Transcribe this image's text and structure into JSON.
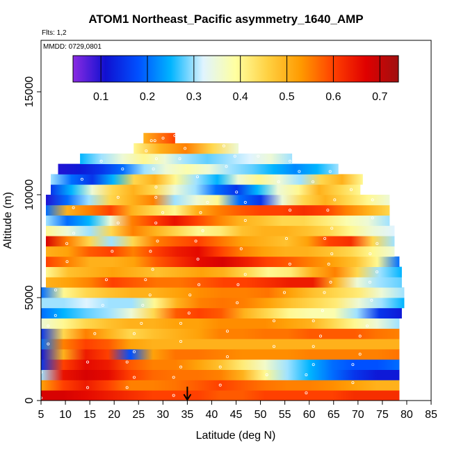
{
  "chart_data": {
    "type": "heatmap",
    "title": "ATOM1 Northeast_Pacific asymmetry_1640_AMP",
    "flights_note": "Flts: 1,2",
    "date_note": "MMDD: 0729,0801",
    "xlabel": "Latitude (deg N)",
    "ylabel": "Altitude (m)",
    "xlim": [
      5,
      85
    ],
    "ylim": [
      0,
      17500
    ],
    "x_ticks": [
      5,
      10,
      15,
      20,
      25,
      30,
      35,
      40,
      45,
      50,
      55,
      60,
      65,
      70,
      75,
      80,
      85
    ],
    "y_ticks": [
      0,
      5000,
      10000,
      15000
    ],
    "colorbar": {
      "range": [
        0.04,
        0.74
      ],
      "ticks": [
        0.1,
        0.2,
        0.3,
        0.4,
        0.5,
        0.6,
        0.7
      ],
      "colors": [
        "#8a2be2",
        "#1010d0",
        "#0050ff",
        "#00b4ff",
        "#e0f4ff",
        "#ffffa0",
        "#ffd040",
        "#ff9a00",
        "#ff4000",
        "#e00000",
        "#a01010"
      ]
    },
    "marker": {
      "latitude": 35,
      "altitude": 0
    },
    "layers": [
      {
        "alt": 250,
        "lat_start": 5,
        "lat_end": 78.5,
        "values": [
          0.68,
          0.68,
          0.66,
          0.64,
          0.62,
          0.6,
          0.6,
          0.6,
          0.58,
          0.58,
          0.6,
          0.6,
          0.6,
          0.6,
          0.62,
          0.62,
          0.62
        ]
      },
      {
        "alt": 750,
        "lat_start": 5,
        "lat_end": 78.5,
        "values": [
          0.52,
          0.6,
          0.64,
          0.6,
          0.55,
          0.55,
          0.56,
          0.58,
          0.6,
          0.58,
          0.56,
          0.55,
          0.55,
          0.54,
          0.52,
          0.5,
          0.5
        ]
      },
      {
        "alt": 1250,
        "lat_start": 5,
        "lat_end": 78.5,
        "values": [
          0.3,
          0.65,
          0.68,
          0.66,
          0.6,
          0.57,
          0.56,
          0.56,
          0.55,
          0.5,
          0.4,
          0.3,
          0.25,
          0.2,
          0.15,
          0.12,
          0.12
        ]
      },
      {
        "alt": 1750,
        "lat_start": 5,
        "lat_end": 78.5,
        "values": [
          0.15,
          0.6,
          0.66,
          0.64,
          0.58,
          0.55,
          0.55,
          0.52,
          0.48,
          0.42,
          0.36,
          0.3,
          0.25,
          0.2,
          0.18,
          0.18,
          0.2
        ]
      },
      {
        "alt": 2250,
        "lat_start": 5,
        "lat_end": 78.5,
        "values": [
          0.12,
          0.5,
          0.64,
          0.6,
          0.18,
          0.52,
          0.56,
          0.56,
          0.55,
          0.54,
          0.54,
          0.54,
          0.55,
          0.55,
          0.55,
          0.55,
          0.56
        ]
      },
      {
        "alt": 2750,
        "lat_start": 5,
        "lat_end": 78.5,
        "values": [
          0.2,
          0.55,
          0.6,
          0.58,
          0.52,
          0.5,
          0.5,
          0.5,
          0.5,
          0.5,
          0.5,
          0.5,
          0.5,
          0.5,
          0.5,
          0.5,
          0.5
        ]
      },
      {
        "alt": 3250,
        "lat_start": 5,
        "lat_end": 78.5,
        "values": [
          0.15,
          0.45,
          0.55,
          0.5,
          0.45,
          0.48,
          0.5,
          0.52,
          0.55,
          0.55,
          0.56,
          0.56,
          0.58,
          0.58,
          0.58,
          0.56,
          0.55
        ]
      },
      {
        "alt": 3750,
        "lat_start": 5,
        "lat_end": 78.5,
        "values": [
          0.35,
          0.4,
          0.45,
          0.48,
          0.5,
          0.5,
          0.52,
          0.52,
          0.54,
          0.54,
          0.54,
          0.52,
          0.5,
          0.45,
          0.4,
          0.35,
          0.3
        ]
      },
      {
        "alt": 4250,
        "lat_start": 5,
        "lat_end": 79,
        "values": [
          0.2,
          0.25,
          0.28,
          0.3,
          0.35,
          0.45,
          0.58,
          0.6,
          0.58,
          0.5,
          0.45,
          0.4,
          0.38,
          0.38,
          0.3,
          0.15,
          0.12
        ]
      },
      {
        "alt": 4750,
        "lat_start": 5,
        "lat_end": 79.5,
        "values": [
          0.3,
          0.3,
          0.32,
          0.3,
          0.3,
          0.4,
          0.5,
          0.55,
          0.56,
          0.55,
          0.52,
          0.48,
          0.45,
          0.42,
          0.35,
          0.3,
          0.25
        ]
      },
      {
        "alt": 5250,
        "lat_start": 5,
        "lat_end": 79.5,
        "values": [
          0.2,
          0.4,
          0.45,
          0.48,
          0.5,
          0.5,
          0.52,
          0.54,
          0.55,
          0.55,
          0.56,
          0.52,
          0.48,
          0.45,
          0.42,
          0.35,
          0.3
        ]
      },
      {
        "alt": 5750,
        "lat_start": 6,
        "lat_end": 79,
        "values": [
          0.5,
          0.52,
          0.55,
          0.6,
          0.58,
          0.56,
          0.56,
          0.58,
          0.6,
          0.6,
          0.62,
          0.64,
          0.64,
          0.5,
          0.35,
          0.3,
          0.28
        ]
      },
      {
        "alt": 6250,
        "lat_start": 6,
        "lat_end": 79,
        "values": [
          0.4,
          0.48,
          0.5,
          0.52,
          0.5,
          0.48,
          0.5,
          0.52,
          0.5,
          0.45,
          0.4,
          0.42,
          0.5,
          0.55,
          0.45,
          0.3,
          0.25
        ]
      },
      {
        "alt": 6750,
        "lat_start": 6,
        "lat_end": 78.5,
        "values": [
          0.6,
          0.55,
          0.5,
          0.5,
          0.52,
          0.58,
          0.62,
          0.66,
          0.68,
          0.64,
          0.6,
          0.58,
          0.55,
          0.52,
          0.48,
          0.4,
          0.2
        ]
      },
      {
        "alt": 7250,
        "lat_start": 6,
        "lat_end": 77.5,
        "values": [
          0.5,
          0.52,
          0.58,
          0.6,
          0.55,
          0.6,
          0.64,
          0.66,
          0.6,
          0.55,
          0.52,
          0.5,
          0.5,
          0.48,
          0.45,
          0.4,
          0.35
        ]
      },
      {
        "alt": 7750,
        "lat_start": 6,
        "lat_end": 77.5,
        "values": [
          0.68,
          0.55,
          0.45,
          0.3,
          0.45,
          0.55,
          0.58,
          0.6,
          0.56,
          0.52,
          0.5,
          0.48,
          0.52,
          0.6,
          0.62,
          0.45,
          0.3
        ]
      },
      {
        "alt": 8250,
        "lat_start": 6,
        "lat_end": 77.5,
        "values": [
          0.4,
          0.35,
          0.3,
          0.45,
          0.55,
          0.5,
          0.45,
          0.4,
          0.42,
          0.48,
          0.5,
          0.5,
          0.48,
          0.45,
          0.4,
          0.35,
          0.32
        ]
      },
      {
        "alt": 8750,
        "lat_start": 6,
        "lat_end": 76.5,
        "values": [
          0.3,
          0.2,
          0.25,
          0.35,
          0.55,
          0.6,
          0.65,
          0.6,
          0.55,
          0.5,
          0.48,
          0.45,
          0.45,
          0.42,
          0.38,
          0.35,
          0.3
        ]
      },
      {
        "alt": 9250,
        "lat_start": 6,
        "lat_end": 76.5,
        "values": [
          0.2,
          0.5,
          0.55,
          0.6,
          0.5,
          0.45,
          0.4,
          0.5,
          0.55,
          0.58,
          0.6,
          0.6,
          0.62,
          0.6,
          0.55,
          0.5,
          0.45
        ]
      },
      {
        "alt": 9750,
        "lat_start": 6,
        "lat_end": 76.5,
        "values": [
          0.1,
          0.2,
          0.3,
          0.45,
          0.5,
          0.55,
          0.3,
          0.35,
          0.4,
          0.2,
          0.15,
          0.35,
          0.45,
          0.5,
          0.45,
          0.4,
          0.35
        ]
      },
      {
        "alt": 10250,
        "lat_start": 7,
        "lat_end": 70.5,
        "values": [
          0.15,
          0.25,
          0.35,
          0.45,
          0.5,
          0.45,
          0.35,
          0.3,
          0.2,
          0.15,
          0.25,
          0.35,
          0.4,
          0.5,
          0.45,
          0.4
        ]
      },
      {
        "alt": 10750,
        "lat_start": 7,
        "lat_end": 71,
        "values": [
          0.3,
          0.2,
          0.15,
          0.25,
          0.45,
          0.5,
          0.4,
          0.3,
          0.25,
          0.35,
          0.4,
          0.35,
          0.3,
          0.45,
          0.5,
          0.4
        ]
      },
      {
        "alt": 11250,
        "lat_start": 8.5,
        "lat_end": 66,
        "values": [
          0.1,
          0.12,
          0.15,
          0.2,
          0.3,
          0.35,
          0.38,
          0.35,
          0.3,
          0.28,
          0.25,
          0.22,
          0.25,
          0.3
        ]
      },
      {
        "alt": 11750,
        "lat_start": 13,
        "lat_end": 56.5,
        "values": [
          0.25,
          0.3,
          0.35,
          0.4,
          0.35,
          0.3,
          0.28,
          0.3,
          0.32,
          0.35,
          0.3
        ]
      },
      {
        "alt": 12250,
        "lat_start": 24,
        "lat_end": 45.5,
        "values": [
          0.4,
          0.5,
          0.55,
          0.45,
          0.35
        ]
      },
      {
        "alt": 12750,
        "lat_start": 26,
        "lat_end": 32.5,
        "values": [
          0.5,
          0.6
        ]
      }
    ]
  }
}
